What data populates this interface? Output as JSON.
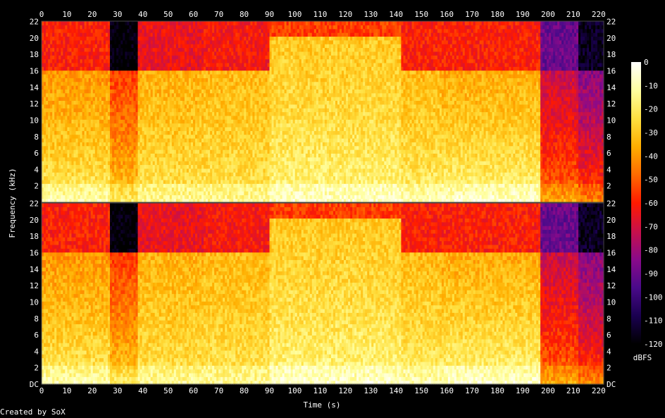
{
  "chart_data": {
    "type": "heatmap",
    "title": "",
    "xlabel": "Time (s)",
    "ylabel": "Frequency (kHz)",
    "colorbar_label": "dBFS",
    "xlim": [
      0,
      222
    ],
    "ylim_khz": [
      0,
      22.05
    ],
    "x_ticks": [
      0,
      10,
      20,
      30,
      40,
      50,
      60,
      70,
      80,
      90,
      100,
      110,
      120,
      130,
      140,
      150,
      160,
      170,
      180,
      190,
      200,
      210,
      220
    ],
    "y_tick_labels": [
      "DC",
      "2",
      "4",
      "6",
      "8",
      "10",
      "12",
      "14",
      "16",
      "18",
      "20",
      "22"
    ],
    "colorbar_ticks": [
      "0",
      "-10",
      "-20",
      "-30",
      "-40",
      "-50",
      "-60",
      "-70",
      "-80",
      "-90",
      "-100",
      "-110",
      "-120"
    ],
    "colorbar_range_db": [
      0,
      -120
    ],
    "channels": [
      {
        "name": "",
        "segments": [
          {
            "t": [
              0,
              27
            ],
            "low_db": -14,
            "mid_db": -40,
            "high_db": -60,
            "cutoff_khz": 16
          },
          {
            "t": [
              27,
              38
            ],
            "low_db": -22,
            "mid_db": -55,
            "high_db": -120,
            "cutoff_khz": 16
          },
          {
            "t": [
              38,
              64
            ],
            "low_db": -18,
            "mid_db": -35,
            "high_db": -65,
            "cutoff_khz": 16
          },
          {
            "t": [
              64,
              90
            ],
            "low_db": -18,
            "mid_db": -33,
            "high_db": -62,
            "cutoff_khz": 16
          },
          {
            "t": [
              90,
              142
            ],
            "low_db": -12,
            "mid_db": -30,
            "high_db": -55,
            "cutoff_khz": 20
          },
          {
            "t": [
              142,
              158
            ],
            "low_db": -14,
            "mid_db": -33,
            "high_db": -60,
            "cutoff_khz": 16
          },
          {
            "t": [
              158,
              197
            ],
            "low_db": -10,
            "mid_db": -36,
            "high_db": -60,
            "cutoff_khz": 16
          },
          {
            "t": [
              197,
              212
            ],
            "low_db": -40,
            "mid_db": -72,
            "high_db": -90,
            "cutoff_khz": 16
          },
          {
            "t": [
              212,
              222
            ],
            "low_db": -45,
            "mid_db": -85,
            "high_db": -115,
            "cutoff_khz": 16
          }
        ]
      },
      {
        "name": "",
        "segments": [
          {
            "t": [
              0,
              27
            ],
            "low_db": -14,
            "mid_db": -40,
            "high_db": -60,
            "cutoff_khz": 16
          },
          {
            "t": [
              27,
              38
            ],
            "low_db": -22,
            "mid_db": -55,
            "high_db": -120,
            "cutoff_khz": 16
          },
          {
            "t": [
              38,
              64
            ],
            "low_db": -18,
            "mid_db": -35,
            "high_db": -65,
            "cutoff_khz": 16
          },
          {
            "t": [
              64,
              90
            ],
            "low_db": -18,
            "mid_db": -33,
            "high_db": -62,
            "cutoff_khz": 16
          },
          {
            "t": [
              90,
              142
            ],
            "low_db": -12,
            "mid_db": -30,
            "high_db": -55,
            "cutoff_khz": 20
          },
          {
            "t": [
              142,
              158
            ],
            "low_db": -14,
            "mid_db": -33,
            "high_db": -60,
            "cutoff_khz": 16
          },
          {
            "t": [
              158,
              197
            ],
            "low_db": -10,
            "mid_db": -36,
            "high_db": -60,
            "cutoff_khz": 16
          },
          {
            "t": [
              197,
              212
            ],
            "low_db": -40,
            "mid_db": -72,
            "high_db": -90,
            "cutoff_khz": 16
          },
          {
            "t": [
              212,
              222
            ],
            "low_db": -45,
            "mid_db": -85,
            "high_db": -115,
            "cutoff_khz": 16
          }
        ]
      }
    ],
    "colormap": [
      "#000000",
      "#1a0050",
      "#4a0a8a",
      "#8a0a8a",
      "#c8104a",
      "#ff1a00",
      "#ff6a00",
      "#ffae00",
      "#ffe040",
      "#ffffa0",
      "#ffffff"
    ],
    "grid": false
  },
  "footer": {
    "credit": "Created by SoX"
  }
}
